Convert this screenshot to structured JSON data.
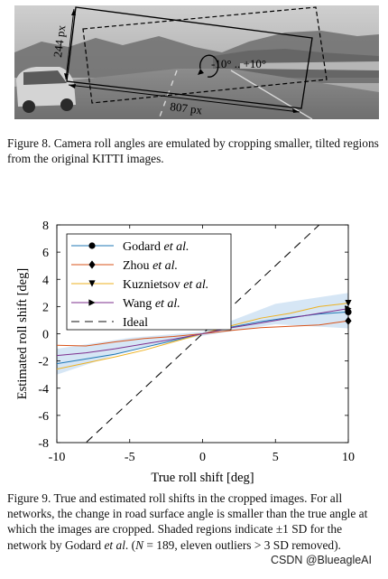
{
  "figure8": {
    "dimension_height": "244 px",
    "dimension_width": "807 px",
    "rotation_range": "-10° .. +10°",
    "caption": "Figure 8. Camera roll angles are emulated by cropping smaller, tilted regions from the original KITTI images."
  },
  "figure9": {
    "caption_parts": {
      "c1": "Figure 9. True and estimated roll shifts in the cropped images. For all networks, the change in road surface angle is smaller than the true angle at which the images are cropped. Shaded regions indicate ±1 SD for the network by Godard ",
      "c2": "et al",
      "c3": ". (",
      "c4": "N",
      "c5": " = 189, eleven outliers > 3 SD removed)."
    }
  },
  "chart_data": {
    "type": "line",
    "title": "",
    "xlabel": "True roll shift [deg]",
    "ylabel": "Estimated roll shift [deg]",
    "xlim": [
      -10,
      10
    ],
    "ylim": [
      -8,
      8
    ],
    "xticks": [
      -10,
      -5,
      0,
      5,
      10
    ],
    "yticks": [
      -8,
      -6,
      -4,
      -2,
      0,
      2,
      4,
      6,
      8
    ],
    "grid": false,
    "legend_position": "top-left",
    "series": [
      {
        "name": "Godard",
        "name_suffix": "et al.",
        "color": "#1f77b4",
        "marker": "circle",
        "x": [
          -10,
          -8,
          -6,
          -4,
          -2,
          0,
          2,
          4,
          6,
          8,
          10
        ],
        "y": [
          -2.2,
          -1.85,
          -1.5,
          -1.0,
          -0.5,
          0.0,
          0.5,
          0.9,
          1.2,
          1.45,
          1.6
        ]
      },
      {
        "name": "Zhou",
        "name_suffix": "et al.",
        "color": "#d95319",
        "marker": "diamond",
        "x": [
          -10,
          -8,
          -6,
          -4,
          -2,
          0,
          2,
          4,
          6,
          8,
          10
        ],
        "y": [
          -0.85,
          -0.9,
          -0.6,
          -0.35,
          -0.2,
          0.0,
          0.25,
          0.45,
          0.55,
          0.65,
          0.95
        ]
      },
      {
        "name": "Kuznietsov",
        "name_suffix": "et al.",
        "color": "#edb120",
        "marker": "triangle-down",
        "x": [
          -10,
          -8,
          -6,
          -4,
          -2,
          0,
          2,
          4,
          6,
          8,
          10
        ],
        "y": [
          -2.6,
          -2.15,
          -1.7,
          -1.2,
          -0.6,
          0.0,
          0.6,
          1.15,
          1.5,
          2.0,
          2.25
        ]
      },
      {
        "name": "Wang",
        "name_suffix": "et al.",
        "color": "#7e2f8e",
        "marker": "triangle-right",
        "x": [
          -10,
          -8,
          -6,
          -4,
          -2,
          0,
          2,
          4,
          6,
          8,
          10
        ],
        "y": [
          -1.6,
          -1.4,
          -1.1,
          -0.75,
          -0.4,
          0.0,
          0.45,
          0.8,
          1.15,
          1.5,
          1.85
        ]
      },
      {
        "name": "Ideal",
        "color": "#111111",
        "dashed": true,
        "x": [
          -10,
          10
        ],
        "y": [
          -10,
          10
        ]
      }
    ],
    "shaded_band": {
      "series": "Godard",
      "x": [
        -10,
        -5,
        0,
        5,
        10
      ],
      "lower": [
        -3.0,
        -1.2,
        -0.15,
        0.7,
        0.4
      ],
      "upper": [
        -1.1,
        -0.3,
        0.15,
        2.2,
        3.0
      ],
      "color": "#cfe2f3"
    }
  },
  "watermark": "CSDN @BlueagleAI"
}
